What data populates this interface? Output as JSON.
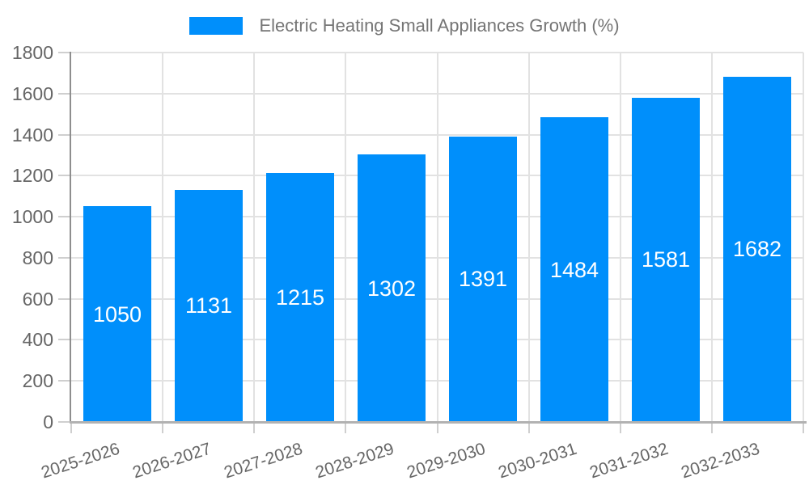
{
  "chart_data": {
    "type": "bar",
    "title": "",
    "legend": [
      "Electric Heating Small Appliances Growth (%)"
    ],
    "legend_position": "top",
    "categories": [
      "2025-2026",
      "2026-2027",
      "2027-2028",
      "2028-2029",
      "2029-2030",
      "2030-2031",
      "2031-2032",
      "2032-2033"
    ],
    "values": [
      1050,
      1131,
      1215,
      1302,
      1391,
      1484,
      1581,
      1682
    ],
    "xlabel": "",
    "ylabel": "",
    "ylim": [
      0,
      1800
    ],
    "ytick_step": 200,
    "grid": true,
    "value_labels_inside_bars": true,
    "colors": {
      "bar": "#008FFB",
      "value_label": "#FFFFFF",
      "grid": "#E2E2E2",
      "tick": "#CFCFCF",
      "axis_y": "#8E8E8E",
      "axis_x": "#B2B2B2",
      "tick_label": "#666666",
      "legend_text": "#757575",
      "background": "#FFFFFF"
    }
  }
}
